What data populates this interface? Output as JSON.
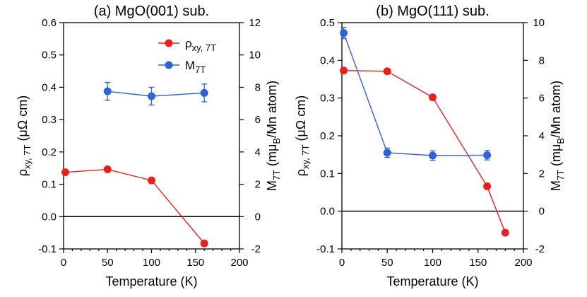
{
  "chart_data": [
    {
      "type": "line",
      "title": "(a) MgO(001) sub.",
      "xlabel": "Temperature (K)",
      "ylabel_left": {
        "main": "ρ",
        "sub": "xy, 7T",
        "tail": " (μΩ cm)"
      },
      "ylabel_right": {
        "main": "M",
        "sub": "7T",
        "tail1": " (mμ",
        "sub2": "B",
        "tail2": "/Mn atom)"
      },
      "xlim": [
        0,
        200
      ],
      "ylim_left": [
        -0.1,
        0.6
      ],
      "ylim_right": [
        -2,
        12
      ],
      "x_ticks": [
        0,
        50,
        100,
        150,
        200
      ],
      "x_tick_labels": [
        "0",
        "50",
        "100",
        "150",
        "200"
      ],
      "y_left_ticks": [
        -0.1,
        0.0,
        0.1,
        0.2,
        0.3,
        0.4,
        0.5,
        0.6
      ],
      "y_left_tick_labels": [
        "-0.1",
        "0.0",
        "0.1",
        "0.2",
        "0.3",
        "0.4",
        "0.5",
        "0.6"
      ],
      "y_right_ticks": [
        -2,
        0,
        2,
        4,
        6,
        8,
        10,
        12
      ],
      "y_right_tick_labels": [
        "-2",
        "0",
        "2",
        "4",
        "6",
        "8",
        "10",
        "12"
      ],
      "zero_line": 0,
      "legend": {
        "position": "top-right",
        "items": [
          {
            "main": "ρ",
            "sub": "xy, 7T",
            "color": "#e8211f"
          },
          {
            "main": "M",
            "sub": "7T",
            "color": "#2f62d8"
          }
        ]
      },
      "series": [
        {
          "name": "ρxy, 7T",
          "axis": "left",
          "color": "#e8211f",
          "x": [
            2,
            50,
            100,
            160
          ],
          "y": [
            0.137,
            0.146,
            0.112,
            -0.083
          ]
        },
        {
          "name": "M7T",
          "axis": "right",
          "color": "#2f62d8",
          "x": [
            50,
            100,
            160
          ],
          "y": [
            7.75,
            7.45,
            7.65
          ],
          "err": [
            0.55,
            0.55,
            0.55
          ]
        }
      ]
    },
    {
      "type": "line",
      "title": "(b) MgO(111) sub.",
      "xlabel": "Temperature (K)",
      "ylabel_left": {
        "main": "ρ",
        "sub": "xy, 7T",
        "tail": " (μΩ cm)"
      },
      "ylabel_right": {
        "main": "M",
        "sub": "7T",
        "tail1": " (mμ",
        "sub2": "B",
        "tail2": "/Mn atom)"
      },
      "xlim": [
        0,
        200
      ],
      "ylim_left": [
        -0.1,
        0.5
      ],
      "ylim_right": [
        -2,
        10
      ],
      "x_ticks": [
        0,
        50,
        100,
        150,
        200
      ],
      "x_tick_labels": [
        "0",
        "50",
        "100",
        "150",
        "200"
      ],
      "y_left_ticks": [
        -0.1,
        0.0,
        0.1,
        0.2,
        0.3,
        0.4,
        0.5
      ],
      "y_left_tick_labels": [
        "-0.1",
        "0.0",
        "0.1",
        "0.2",
        "0.3",
        "0.4",
        "0.5"
      ],
      "y_right_ticks": [
        -2,
        0,
        2,
        4,
        6,
        8,
        10
      ],
      "y_right_tick_labels": [
        "-2",
        "0",
        "2",
        "4",
        "6",
        "8",
        "10"
      ],
      "zero_line": 0,
      "series": [
        {
          "name": "ρxy, 7T",
          "axis": "left",
          "color": "#e8211f",
          "x": [
            2,
            50,
            100,
            160,
            180
          ],
          "y": [
            0.373,
            0.371,
            0.302,
            0.066,
            -0.057
          ]
        },
        {
          "name": "M7T",
          "axis": "right",
          "color": "#2f62d8",
          "x": [
            2,
            50,
            100,
            160
          ],
          "y": [
            9.45,
            3.1,
            2.95,
            2.97
          ],
          "err": [
            0.3,
            0.25,
            0.25,
            0.25
          ]
        }
      ]
    }
  ]
}
